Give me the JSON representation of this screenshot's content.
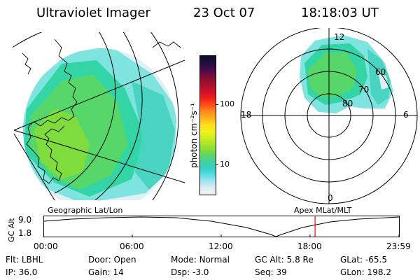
{
  "header": {
    "instrument": "Ultraviolet Imager",
    "date": "23 Oct 07",
    "time": "18:18:03 UT"
  },
  "colorbar": {
    "unit_label": "photon cm⁻²s⁻¹",
    "ticks": [
      {
        "label": "100",
        "value": 100
      },
      {
        "label": "10",
        "value": 10
      }
    ],
    "colors": [
      "#f4f4f4",
      "#d8eef4",
      "#9fe4ef",
      "#4fd9de",
      "#33cfbf",
      "#49d28c",
      "#6ad84f",
      "#9ee12e",
      "#c8ea20",
      "#eef21d",
      "#ffe11a",
      "#ffb21a",
      "#ff8a1a",
      "#ff4a1a",
      "#ea1c1c",
      "#c8102e",
      "#a3122c",
      "#7a1036",
      "#4a0a4d",
      "#1e0f3c",
      "#0a0a2a"
    ]
  },
  "polar": {
    "mlt_labels": {
      "top": "12",
      "left": "18",
      "right": "6",
      "bottom": "0"
    },
    "lat_labels": [
      "60",
      "70",
      "80"
    ]
  },
  "timeline": {
    "left_title": "Geographic Lat/Lon",
    "right_title": "Apex  MLat/MLT",
    "y_axis_label": "GC Alt",
    "y_ticks": [
      "9.0",
      "1.8"
    ],
    "x_ticks": [
      "00:00",
      "06:00",
      "12:00",
      "18:00",
      "23:59"
    ],
    "marker_time": "18:18",
    "marker_color": "#ff0000"
  },
  "status": {
    "row1": [
      {
        "label": "Flt:",
        "value": "LBHL"
      },
      {
        "label": "Door:",
        "value": "Open"
      },
      {
        "label": "Mode:",
        "value": "Normal"
      },
      {
        "label": "GC Alt:",
        "value": "5.8 Re"
      },
      {
        "label": "GLat:",
        "value": "-65.5"
      }
    ],
    "row2": [
      {
        "label": "IP:",
        "value": "36.0"
      },
      {
        "label": "Gain:",
        "value": "14"
      },
      {
        "label": "Dsp:",
        "value": "-3.0"
      },
      {
        "label": "Seq:",
        "value": "39"
      },
      {
        "label": "GLon:",
        "value": "198.2"
      }
    ]
  }
}
